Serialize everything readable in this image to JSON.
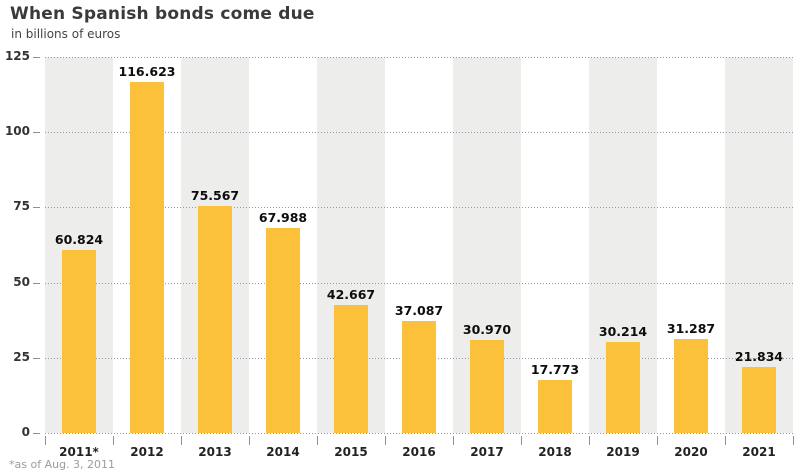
{
  "header": {
    "title": "When Spanish bonds come due",
    "subtitle": "in billions of euros"
  },
  "footnote": "*as of Aug. 3, 2011",
  "colors": {
    "bar": "#FCC13A",
    "band": "#EDEDEB",
    "grid": "#9A9A9A",
    "title_text": "#3A3A3A",
    "value_label_text": "#0D0D0D",
    "axis_label_text": "#222222",
    "footnote_text": "#9C9C9C"
  },
  "chart_data": {
    "type": "bar",
    "title": "When Spanish bonds come due",
    "subtitle": "in billions of euros",
    "footnote": "*as of Aug. 3, 2011",
    "categories": [
      "2011*",
      "2012",
      "2013",
      "2014",
      "2015",
      "2016",
      "2017",
      "2018",
      "2019",
      "2020",
      "2021"
    ],
    "values": [
      60.824,
      116.623,
      75.567,
      67.988,
      42.667,
      37.087,
      30.97,
      17.773,
      30.214,
      31.287,
      21.834
    ],
    "value_labels": [
      "60.824",
      "116.623",
      "75.567",
      "67.988",
      "42.667",
      "37.087",
      "30.970",
      "17.773",
      "30.214",
      "31.287",
      "21.834"
    ],
    "xlabel": "",
    "ylabel": "",
    "ylim": [
      0,
      125
    ],
    "yticks": [
      0,
      25,
      50,
      75,
      100,
      125
    ],
    "grid": "horizontal-dotted",
    "legend": "none",
    "band_pattern": "alternating-gray-starting-first-category"
  }
}
